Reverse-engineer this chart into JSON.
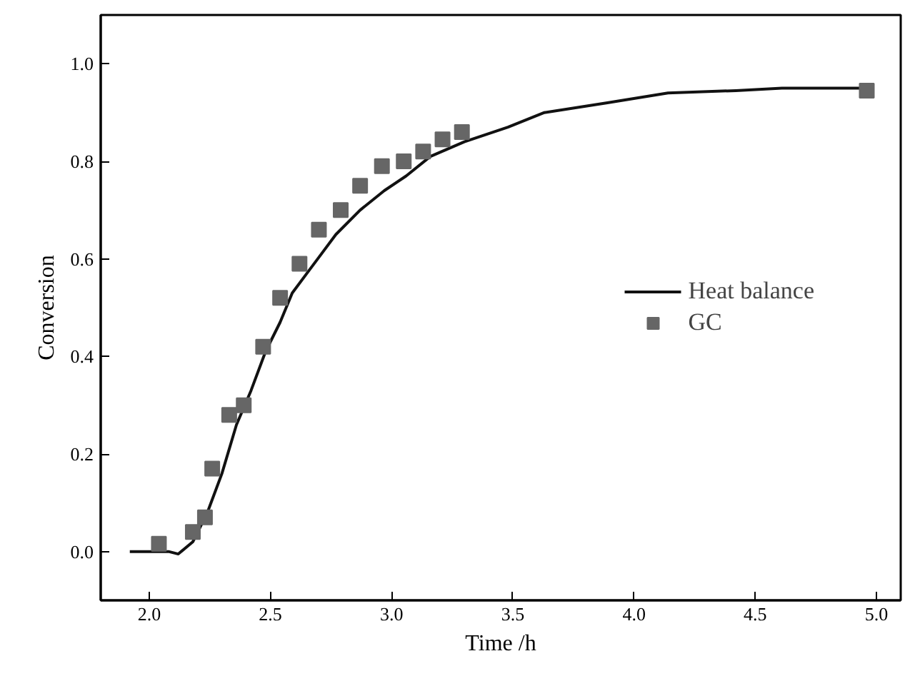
{
  "chart_data": {
    "type": "line",
    "xlabel": "Time /h",
    "ylabel": "Conversion",
    "xlim": [
      1.8,
      5.1
    ],
    "ylim": [
      -0.1,
      1.1
    ],
    "xticks": [
      {
        "value": 2.0,
        "label": "2.0"
      },
      {
        "value": 2.5,
        "label": "2.5"
      },
      {
        "value": 3.0,
        "label": "3.0"
      },
      {
        "value": 3.5,
        "label": "3.5"
      },
      {
        "value": 4.0,
        "label": "4.0"
      },
      {
        "value": 4.5,
        "label": "4.5"
      },
      {
        "value": 5.0,
        "label": "5.0"
      }
    ],
    "yticks": [
      {
        "value": 0.0,
        "label": "0.0"
      },
      {
        "value": 0.2,
        "label": "0.2"
      },
      {
        "value": 0.4,
        "label": "0.4"
      },
      {
        "value": 0.6,
        "label": "0.6"
      },
      {
        "value": 0.8,
        "label": "0.8"
      },
      {
        "value": 1.0,
        "label": "1.0"
      }
    ],
    "grid": false,
    "legend": "right",
    "series": [
      {
        "name": "Heat balance",
        "color": "#111111",
        "line_style": "solid",
        "marker": "none",
        "x": [
          1.92,
          2.08,
          2.12,
          2.18,
          2.24,
          2.3,
          2.36,
          2.42,
          2.48,
          2.54,
          2.59,
          2.65,
          2.71,
          2.77,
          2.87,
          2.97,
          3.06,
          3.16,
          3.3,
          3.48,
          3.63,
          3.89,
          4.14,
          4.42,
          4.61,
          4.96
        ],
        "values": [
          0,
          0,
          -0.005,
          0.02,
          0.08,
          0.16,
          0.26,
          0.33,
          0.41,
          0.47,
          0.53,
          0.57,
          0.61,
          0.65,
          0.7,
          0.74,
          0.77,
          0.81,
          0.84,
          0.87,
          0.9,
          0.92,
          0.94,
          0.945,
          0.95,
          0.95
        ]
      },
      {
        "name": "GC",
        "type": "scatter",
        "color": "#666666",
        "marker": "square",
        "x": [
          2.04,
          2.18,
          2.23,
          2.26,
          2.33,
          2.39,
          2.47,
          2.54,
          2.62,
          2.7,
          2.79,
          2.87,
          2.96,
          3.05,
          3.13,
          3.21,
          3.29,
          4.96
        ],
        "values": [
          0.016,
          0.04,
          0.07,
          0.17,
          0.28,
          0.3,
          0.42,
          0.52,
          0.59,
          0.66,
          0.7,
          0.75,
          0.79,
          0.8,
          0.82,
          0.845,
          0.86,
          0.945
        ]
      }
    ]
  }
}
